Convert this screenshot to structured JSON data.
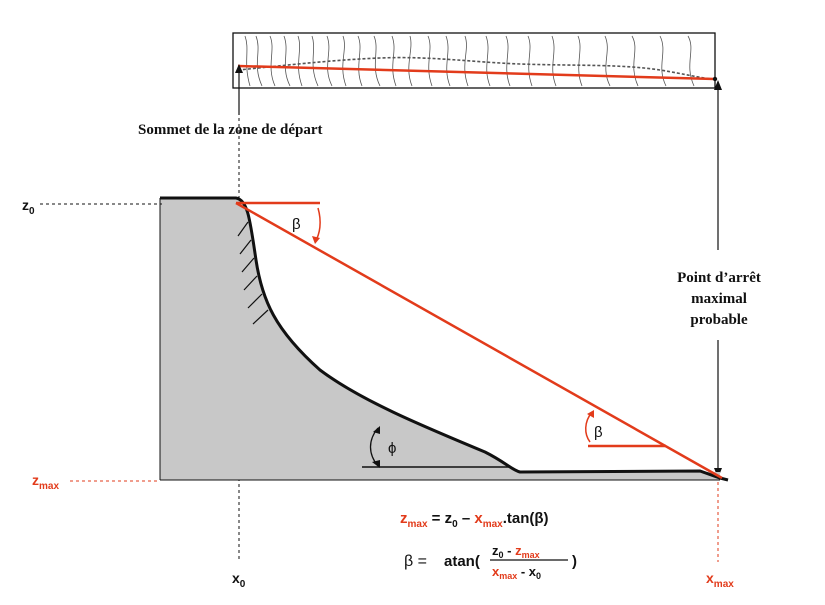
{
  "labels": {
    "start_zone_top": "Sommet de la zone de départ",
    "stop_point_line1": "Point d’arrêt",
    "stop_point_line2": "maximal",
    "stop_point_line3": "probable",
    "z0": "z",
    "z0_sub": "0",
    "zmax": "z",
    "zmax_sub": "max",
    "x0": "x",
    "x0_sub": "0",
    "xmax": "x",
    "xmax_sub": "max",
    "beta": "β",
    "phi": "ϕ"
  },
  "formula1": {
    "z": "z",
    "z_sub": "max",
    "eq": " = z",
    "z0_sub": "0",
    "minus": " – ",
    "x": "x",
    "x_sub": "max",
    "tail": ".tan(β)"
  },
  "formula2": {
    "lhs": "β =",
    "fn": "atan(",
    "num_z0": "z",
    "num_z0_sub": "0",
    "num_minus": " - ",
    "num_zmax": "z",
    "num_zmax_sub": "max",
    "den_xmax": "x",
    "den_xmax_sub": "max",
    "den_minus": " - x",
    "den_x0_sub": "0",
    "close": ")"
  },
  "colors": {
    "red": "#e23b1b",
    "slope_fill": "#c8c8c8",
    "ink": "#111111"
  }
}
